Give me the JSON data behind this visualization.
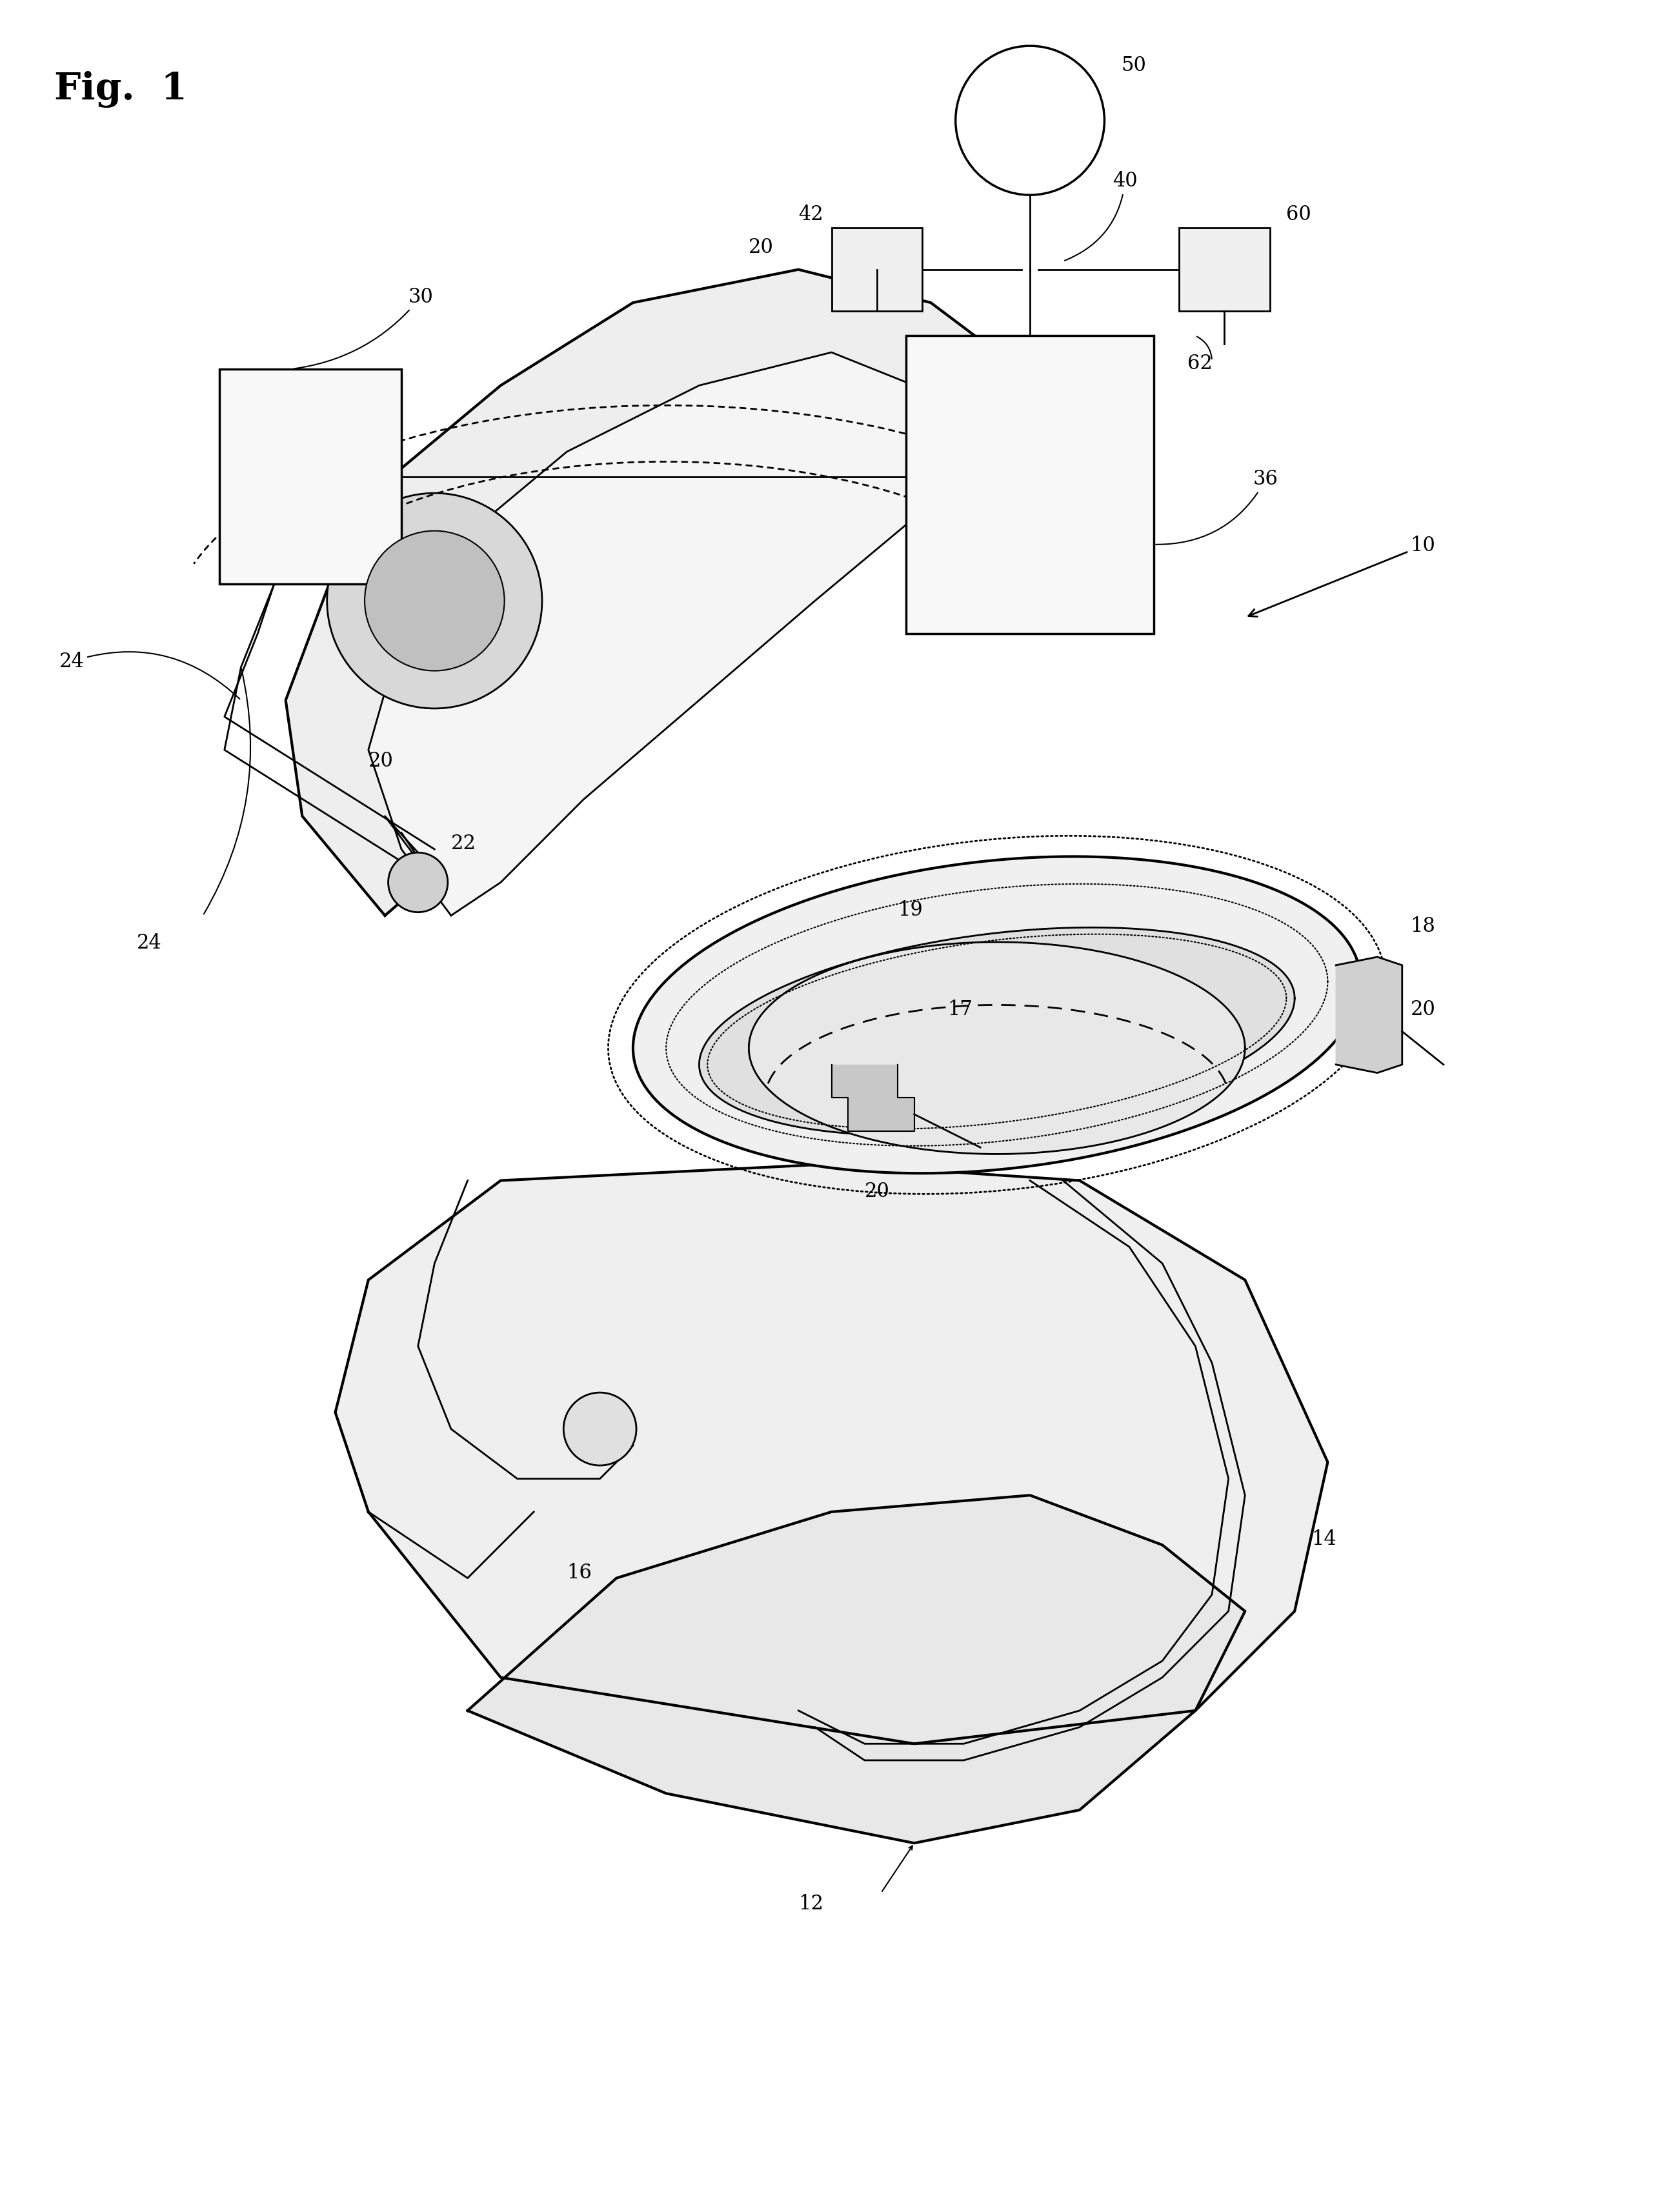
{
  "background_color": "#ffffff",
  "line_color": "#000000",
  "fig_width": 25.77,
  "fig_height": 34.28,
  "title": "Fig.  1"
}
